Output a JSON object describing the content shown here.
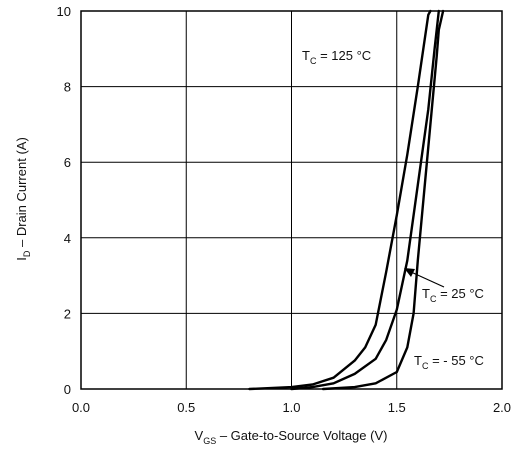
{
  "chart_data": {
    "type": "line",
    "xlabel": {
      "main": "V",
      "sub": "GS",
      "rest": " – Gate-to-Source Voltage (V)"
    },
    "ylabel": {
      "main": "I",
      "sub": "D",
      "rest": " – Drain Current (A)"
    },
    "xlim": [
      0.0,
      2.0
    ],
    "ylim": [
      0,
      10
    ],
    "x_ticks": [
      "0.0",
      "0.5",
      "1.0",
      "1.5",
      "2.0"
    ],
    "y_ticks": [
      "0",
      "2",
      "4",
      "6",
      "8",
      "10"
    ],
    "grid": true,
    "series": [
      {
        "name": "T_C = 125 °C",
        "points": [
          [
            0.8,
            0.0
          ],
          [
            1.0,
            0.05
          ],
          [
            1.1,
            0.12
          ],
          [
            1.2,
            0.3
          ],
          [
            1.3,
            0.75
          ],
          [
            1.35,
            1.1
          ],
          [
            1.4,
            1.7
          ],
          [
            1.45,
            3.1
          ],
          [
            1.5,
            4.6
          ],
          [
            1.55,
            6.2
          ],
          [
            1.6,
            8.0
          ],
          [
            1.65,
            9.9
          ],
          [
            1.66,
            10.0
          ]
        ]
      },
      {
        "name": "T_C = 25 °C",
        "points": [
          [
            1.0,
            0.0
          ],
          [
            1.1,
            0.05
          ],
          [
            1.2,
            0.15
          ],
          [
            1.3,
            0.4
          ],
          [
            1.4,
            0.8
          ],
          [
            1.45,
            1.3
          ],
          [
            1.5,
            2.1
          ],
          [
            1.55,
            3.4
          ],
          [
            1.6,
            5.4
          ],
          [
            1.65,
            7.4
          ],
          [
            1.68,
            9.0
          ],
          [
            1.7,
            10.0
          ]
        ]
      },
      {
        "name": "T_C = - 55 °C",
        "points": [
          [
            1.15,
            0.0
          ],
          [
            1.3,
            0.05
          ],
          [
            1.4,
            0.15
          ],
          [
            1.5,
            0.45
          ],
          [
            1.55,
            1.1
          ],
          [
            1.58,
            2.0
          ],
          [
            1.6,
            3.4
          ],
          [
            1.63,
            5.2
          ],
          [
            1.66,
            7.0
          ],
          [
            1.69,
            8.8
          ],
          [
            1.7,
            9.5
          ],
          [
            1.72,
            10.0
          ]
        ]
      }
    ],
    "annotations": [
      {
        "main": "T",
        "sub": "C",
        "rest": " = 125 °C"
      },
      {
        "main": "T",
        "sub": "C",
        "rest": " = 25 °C"
      },
      {
        "main": "T",
        "sub": "C",
        "rest": " = - 55 °C"
      }
    ]
  }
}
